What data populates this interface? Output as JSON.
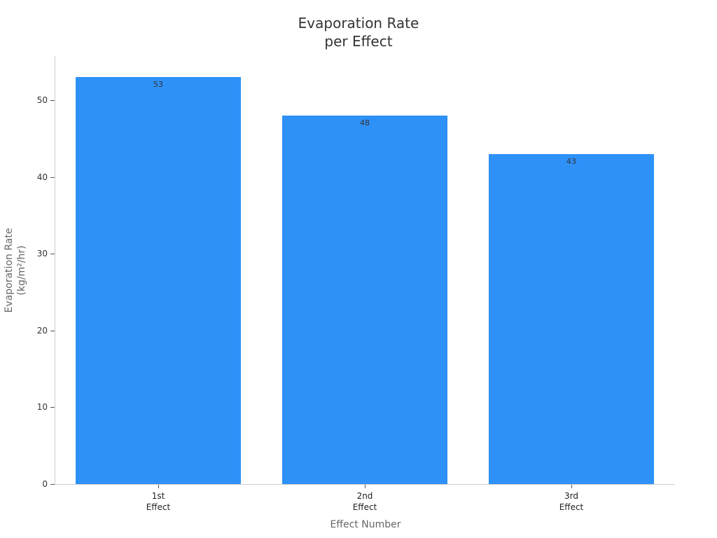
{
  "chart_data": {
    "type": "bar",
    "title": "Evaporation Rate per Effect",
    "title_lines": [
      "Evaporation Rate",
      "per Effect"
    ],
    "categories": [
      "1st Effect",
      "2nd Effect",
      "3rd Effect"
    ],
    "category_lines": [
      [
        "1st",
        "Effect"
      ],
      [
        "2nd",
        "Effect"
      ],
      [
        "3rd",
        "Effect"
      ]
    ],
    "values": [
      53,
      48,
      43
    ],
    "data_labels": [
      "53",
      "48",
      "43"
    ],
    "xlabel": "Effect Number",
    "ylabel": "Evaporation Rate (kg/m²/hr)",
    "ylabel_lines": [
      "Evaporation Rate",
      "(kg/m²/hr)"
    ],
    "yticks": [
      0,
      10,
      20,
      30,
      40,
      50
    ],
    "ylim": [
      0,
      55.8
    ],
    "grid": false,
    "legend": null,
    "bar_color": "#2e91f8"
  }
}
